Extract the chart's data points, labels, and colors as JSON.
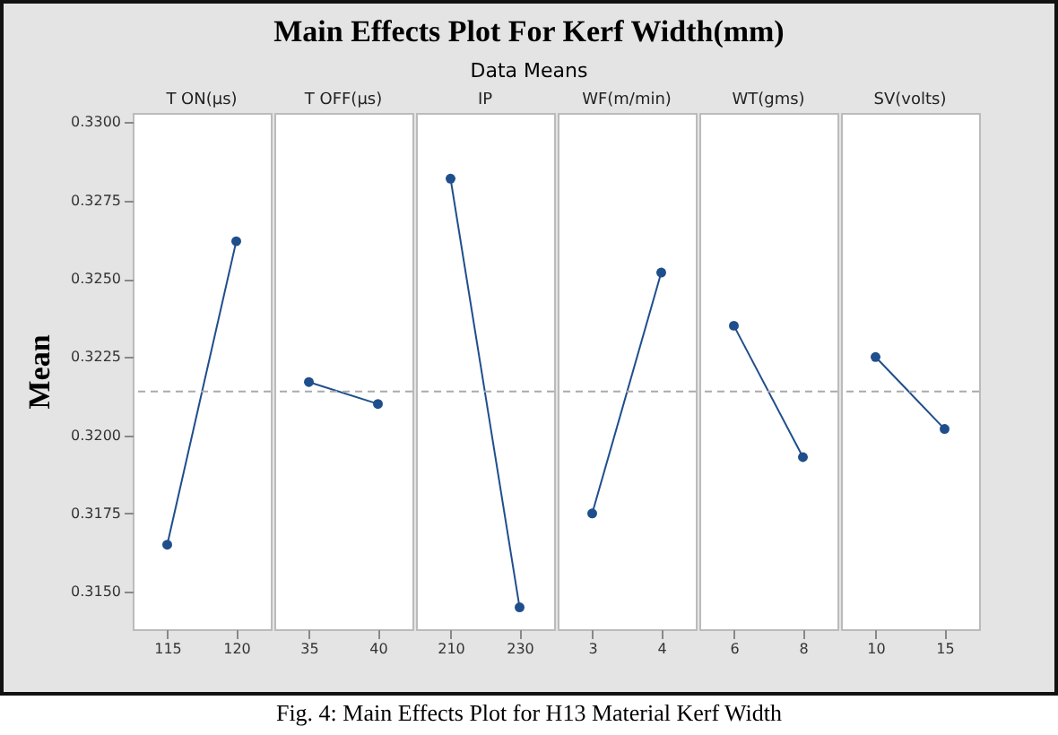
{
  "chart_data": [
    {
      "type": "other",
      "title": "Main Effects Plot For Kerf Width(mm)",
      "subtitle": "Data Means",
      "annotations": [
        "Fig. 4: Main Effects Plot for H13 Material Kerf Width"
      ]
    },
    {
      "type": "line",
      "ylabel": "Mean",
      "xlabel": "T ON(µs)",
      "categories": [
        "115",
        "120"
      ],
      "values": [
        0.3165,
        0.3262
      ],
      "color": "#1f4e8c",
      "marker": "circle",
      "ylim": [
        0.3138,
        0.3303
      ],
      "yticks": [
        {
          "value": 0.315,
          "label": "0.3150"
        },
        0.3175,
        {
          "value": 0.32,
          "label": "0.3200"
        },
        0.3225,
        {
          "value": 0.325,
          "label": "0.3250"
        },
        0.3275,
        {
          "value": 0.33,
          "label": "0.3300"
        }
      ],
      "ref_lines": [
        {
          "axis": "y",
          "value": 0.3214,
          "line_style": "dashed",
          "color": "#aaaaaa"
        }
      ]
    },
    {
      "type": "line",
      "xlabel": "T OFF(µs)",
      "categories": [
        "35",
        "40"
      ],
      "values": [
        0.3217,
        0.321
      ],
      "color": "#1f4e8c",
      "marker": "circle",
      "ylim": [
        0.3138,
        0.3303
      ],
      "tick_labels": "x",
      "ref_lines": [
        {
          "axis": "y",
          "value": 0.3214,
          "line_style": "dashed",
          "color": "#aaaaaa"
        }
      ]
    },
    {
      "type": "line",
      "xlabel": "IP",
      "categories": [
        "210",
        "230"
      ],
      "values": [
        0.3282,
        0.3145
      ],
      "color": "#1f4e8c",
      "marker": "circle",
      "ylim": [
        0.3138,
        0.3303
      ],
      "tick_labels": "x",
      "ref_lines": [
        {
          "axis": "y",
          "value": 0.3214,
          "line_style": "dashed",
          "color": "#aaaaaa"
        }
      ]
    },
    {
      "type": "line",
      "xlabel": "WF(m/min)",
      "categories": [
        "3",
        "4"
      ],
      "values": [
        0.3175,
        0.3252
      ],
      "color": "#1f4e8c",
      "marker": "circle",
      "ylim": [
        0.3138,
        0.3303
      ],
      "tick_labels": "x",
      "ref_lines": [
        {
          "axis": "y",
          "value": 0.3214,
          "line_style": "dashed",
          "color": "#aaaaaa"
        }
      ]
    },
    {
      "type": "line",
      "xlabel": "WT(gms)",
      "categories": [
        "6",
        "8"
      ],
      "values": [
        0.3235,
        0.3193
      ],
      "color": "#1f4e8c",
      "marker": "circle",
      "ylim": [
        0.3138,
        0.3303
      ],
      "tick_labels": "x",
      "ref_lines": [
        {
          "axis": "y",
          "value": 0.3214,
          "line_style": "dashed",
          "color": "#aaaaaa"
        }
      ]
    },
    {
      "type": "line",
      "xlabel": "SV(volts)",
      "categories": [
        "10",
        "15"
      ],
      "values": [
        0.3225,
        0.3202
      ],
      "color": "#1f4e8c",
      "marker": "circle",
      "ylim": [
        0.3138,
        0.3303
      ],
      "tick_labels": "x",
      "ref_lines": [
        {
          "axis": "y",
          "value": 0.3214,
          "line_style": "dashed",
          "color": "#aaaaaa"
        }
      ]
    }
  ]
}
